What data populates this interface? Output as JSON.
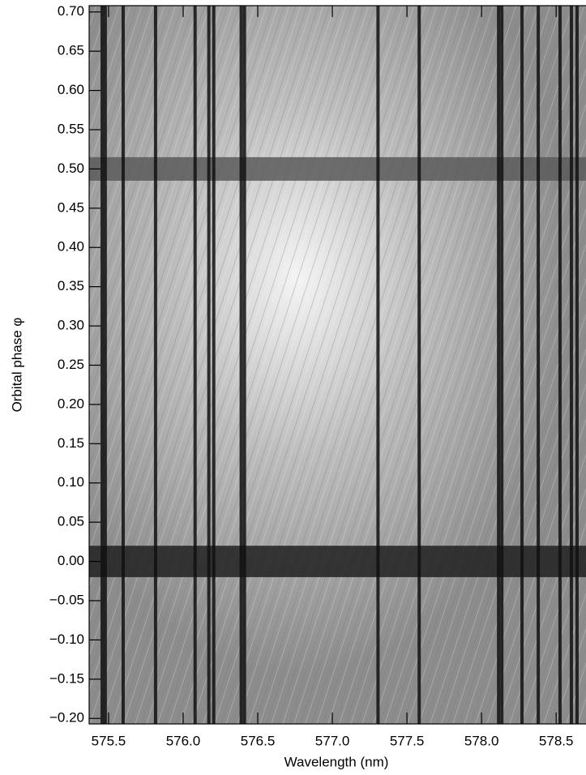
{
  "chart_data": {
    "type": "image",
    "x_label": "Wavelength (nm)",
    "y_label": "Orbital phase φ",
    "xlim": [
      575.37,
      578.7
    ],
    "ylim": [
      -0.207,
      0.708
    ],
    "xticks": [
      575.5,
      {
        "value": 576.0,
        "label": "576.0"
      },
      576.5,
      {
        "value": 577.0,
        "label": "577.0"
      },
      577.5,
      {
        "value": 578.0,
        "label": "578.0"
      },
      578.5
    ],
    "yticks": [
      {
        "value": -0.2,
        "label": "−0.20"
      },
      {
        "value": -0.15,
        "label": "−0.15"
      },
      {
        "value": -0.1,
        "label": "−0.10"
      },
      {
        "value": -0.05,
        "label": "−0.05"
      },
      {
        "value": 0,
        "label": "0.00"
      },
      {
        "value": 0.05,
        "label": "0.05"
      },
      {
        "value": 0.1,
        "label": "0.10"
      },
      {
        "value": 0.15,
        "label": "0.15"
      },
      {
        "value": 0.2,
        "label": "0.20"
      },
      {
        "value": 0.25,
        "label": "0.25"
      },
      {
        "value": 0.3,
        "label": "0.30"
      },
      {
        "value": 0.35,
        "label": "0.35"
      },
      {
        "value": 0.4,
        "label": "0.40"
      },
      {
        "value": 0.45,
        "label": "0.45"
      },
      {
        "value": 0.5,
        "label": "0.50"
      },
      {
        "value": 0.55,
        "label": "0.55"
      },
      {
        "value": 0.6,
        "label": "0.60"
      },
      {
        "value": 0.65,
        "label": "0.65"
      },
      {
        "value": 0.7,
        "label": "0.70"
      }
    ],
    "lines": [
      575.457,
      575.478,
      575.598,
      575.815,
      576.08,
      576.172,
      576.205,
      576.389,
      576.411,
      577.306,
      577.582,
      578.114,
      578.136,
      578.271,
      578.38,
      578.526,
      578.602,
      578.64
    ],
    "line_color": "#111111",
    "bands": [
      {
        "from": 0.485,
        "to": 0.515,
        "color": "#5a5a5a"
      },
      {
        "from": -0.02,
        "to": 0.02,
        "color": "#202020"
      }
    ]
  }
}
